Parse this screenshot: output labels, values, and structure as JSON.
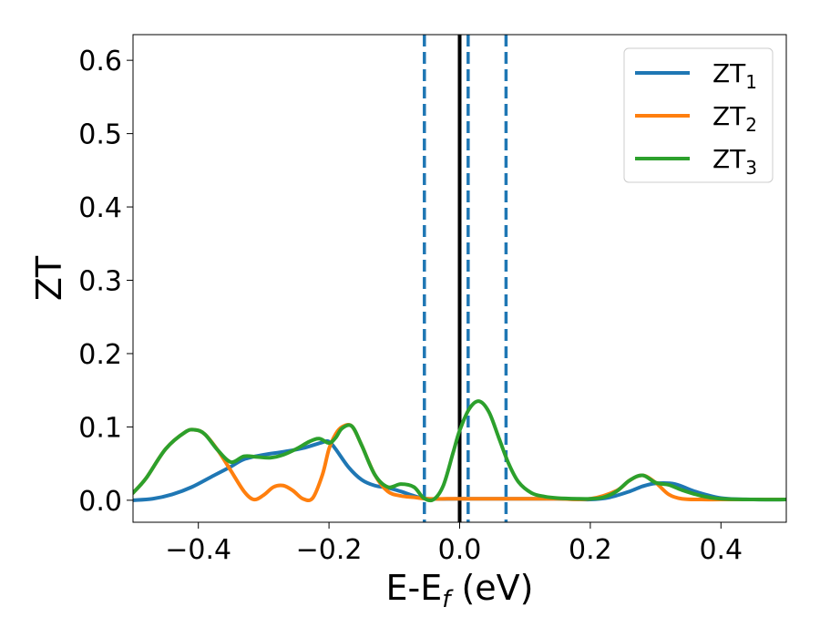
{
  "chart_data": {
    "type": "line",
    "xlabel": "E-E",
    "xlabel_sub": "f",
    "xlabel_unit": " (eV)",
    "ylabel": "ZT",
    "xlim": [
      -0.5,
      0.5
    ],
    "ylim": [
      -0.03,
      0.635
    ],
    "xticks": [
      -0.4,
      -0.2,
      0.0,
      0.2,
      0.4
    ],
    "xtick_labels": [
      "−0.4",
      "−0.2",
      "0.0",
      "0.2",
      "0.4"
    ],
    "yticks": [
      0.0,
      0.1,
      0.2,
      0.3,
      0.4,
      0.5,
      0.6
    ],
    "ytick_labels": [
      "0.0",
      "0.1",
      "0.2",
      "0.3",
      "0.4",
      "0.5",
      "0.6"
    ],
    "grid": false,
    "legend": "top-right",
    "vlines": [
      {
        "x": 0.0,
        "style": "solid",
        "color": "#000000"
      },
      {
        "x": -0.054,
        "style": "dashed",
        "color": "#1f77b4"
      },
      {
        "x": 0.013,
        "style": "dashed",
        "color": "#1f77b4"
      },
      {
        "x": 0.071,
        "style": "dashed",
        "color": "#1f77b4"
      }
    ],
    "series": [
      {
        "name": "ZT",
        "sub": "1",
        "color": "#1f77b4",
        "x": [
          -0.5,
          -0.47,
          -0.44,
          -0.41,
          -0.38,
          -0.35,
          -0.33,
          -0.3,
          -0.27,
          -0.24,
          -0.21,
          -0.2,
          -0.19,
          -0.17,
          -0.15,
          -0.13,
          -0.11,
          -0.09,
          -0.07,
          -0.05,
          0.0,
          0.05,
          0.1,
          0.15,
          0.2,
          0.23,
          0.26,
          0.28,
          0.3,
          0.33,
          0.36,
          0.4,
          0.45,
          0.5
        ],
        "values": [
          0.0,
          0.002,
          0.008,
          0.018,
          0.032,
          0.046,
          0.056,
          0.062,
          0.066,
          0.071,
          0.079,
          0.08,
          0.07,
          0.045,
          0.028,
          0.02,
          0.017,
          0.012,
          0.006,
          0.002,
          0.002,
          0.002,
          0.002,
          0.002,
          0.001,
          0.004,
          0.012,
          0.019,
          0.023,
          0.022,
          0.012,
          0.003,
          0.001,
          0.001
        ]
      },
      {
        "name": "ZT",
        "sub": "2",
        "color": "#ff7f0e",
        "x": [
          -0.5,
          -0.48,
          -0.45,
          -0.42,
          -0.405,
          -0.39,
          -0.37,
          -0.35,
          -0.33,
          -0.315,
          -0.3,
          -0.285,
          -0.27,
          -0.255,
          -0.24,
          -0.225,
          -0.21,
          -0.2,
          -0.19,
          -0.18,
          -0.165,
          -0.15,
          -0.13,
          -0.11,
          -0.09,
          -0.07,
          -0.05,
          -0.02,
          0.0,
          0.05,
          0.1,
          0.15,
          0.2,
          0.24,
          0.26,
          0.28,
          0.3,
          0.32,
          0.34,
          0.37,
          0.4,
          0.45,
          0.5
        ],
        "values": [
          0.01,
          0.03,
          0.07,
          0.093,
          0.096,
          0.09,
          0.068,
          0.04,
          0.012,
          0.001,
          0.007,
          0.018,
          0.02,
          0.013,
          0.002,
          0.003,
          0.035,
          0.07,
          0.09,
          0.1,
          0.101,
          0.075,
          0.035,
          0.012,
          0.006,
          0.004,
          0.002,
          0.002,
          0.002,
          0.002,
          0.002,
          0.002,
          0.002,
          0.013,
          0.027,
          0.034,
          0.024,
          0.008,
          0.002,
          0.001,
          0.001,
          0.001,
          0.001
        ]
      },
      {
        "name": "ZT",
        "sub": "3",
        "color": "#2ca02c",
        "x": [
          -0.5,
          -0.48,
          -0.45,
          -0.42,
          -0.405,
          -0.39,
          -0.37,
          -0.35,
          -0.33,
          -0.31,
          -0.29,
          -0.27,
          -0.25,
          -0.23,
          -0.215,
          -0.2,
          -0.19,
          -0.18,
          -0.165,
          -0.15,
          -0.13,
          -0.11,
          -0.09,
          -0.07,
          -0.055,
          -0.04,
          -0.025,
          -0.01,
          0.0,
          0.015,
          0.03,
          0.045,
          0.06,
          0.075,
          0.09,
          0.11,
          0.13,
          0.15,
          0.18,
          0.2,
          0.22,
          0.24,
          0.26,
          0.28,
          0.3,
          0.32,
          0.34,
          0.37,
          0.4,
          0.45,
          0.5
        ],
        "values": [
          0.01,
          0.03,
          0.07,
          0.093,
          0.096,
          0.09,
          0.068,
          0.052,
          0.06,
          0.059,
          0.058,
          0.062,
          0.07,
          0.08,
          0.084,
          0.078,
          0.085,
          0.098,
          0.101,
          0.075,
          0.035,
          0.018,
          0.022,
          0.018,
          0.003,
          0.001,
          0.02,
          0.065,
          0.095,
          0.125,
          0.135,
          0.12,
          0.085,
          0.05,
          0.025,
          0.01,
          0.005,
          0.003,
          0.002,
          0.002,
          0.004,
          0.012,
          0.027,
          0.034,
          0.024,
          0.021,
          0.014,
          0.006,
          0.002,
          0.001,
          0.001
        ]
      }
    ]
  }
}
